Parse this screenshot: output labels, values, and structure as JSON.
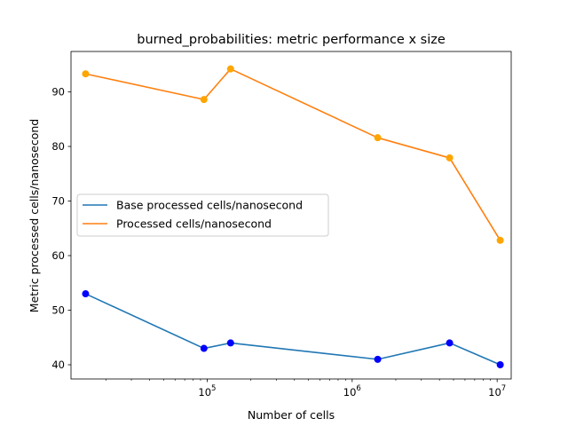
{
  "chart_data": {
    "type": "line",
    "title": "burned_probabilities: metric performance x size",
    "xlabel": "Number of cells",
    "ylabel": "Metric processed cells/nanosecond",
    "xscale": "log",
    "xlim": [
      11500,
      12500000
    ],
    "ylim": [
      37.4,
      97.4
    ],
    "grid": false,
    "legend_position": "center-left",
    "x_ticks": [
      {
        "value": 100000,
        "base": "10",
        "exp": "5"
      },
      {
        "value": 1000000,
        "base": "10",
        "exp": "6"
      },
      {
        "value": 10000000,
        "base": "10",
        "exp": "7"
      }
    ],
    "y_ticks": [
      {
        "value": 40,
        "label": "40"
      },
      {
        "value": 50,
        "label": "50"
      },
      {
        "value": 60,
        "label": "60"
      },
      {
        "value": 70,
        "label": "70"
      },
      {
        "value": 80,
        "label": "80"
      },
      {
        "value": 90,
        "label": "90"
      }
    ],
    "x": [
      14500,
      95000,
      145000,
      1500000,
      4700000,
      10500000
    ],
    "series": [
      {
        "name": "Base processed cells/nanosecond",
        "values": [
          53,
          43,
          44,
          41,
          44,
          40
        ],
        "line_color": "#1f77b4",
        "marker_color": "#0000ff"
      },
      {
        "name": "Processed cells/nanosecond",
        "values": [
          93.3,
          88.6,
          94.2,
          81.6,
          77.9,
          62.8
        ],
        "line_color": "#ff7f0e",
        "marker_color": "#ffa500"
      }
    ]
  }
}
